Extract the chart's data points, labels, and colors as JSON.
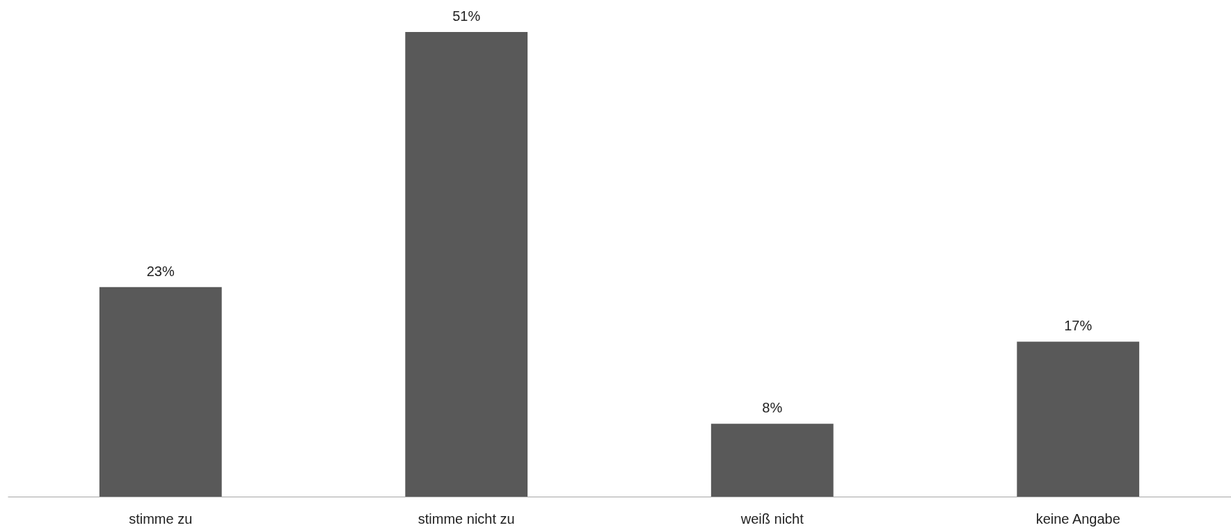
{
  "chart_data": {
    "type": "bar",
    "categories": [
      "stimme zu",
      "stimme nicht zu",
      "weiß nicht",
      "keine Angabe"
    ],
    "values": [
      23,
      51,
      8,
      17
    ],
    "value_labels": [
      "23%",
      "51%",
      "8%",
      "17%"
    ],
    "color": "#595959"
  }
}
